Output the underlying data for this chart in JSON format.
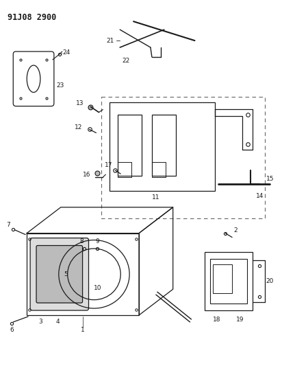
{
  "title_code": "91J08 2900",
  "bg_color": "#ffffff",
  "line_color": "#1a1a1a",
  "fig_width": 4.12,
  "fig_height": 5.33,
  "dpi": 100
}
